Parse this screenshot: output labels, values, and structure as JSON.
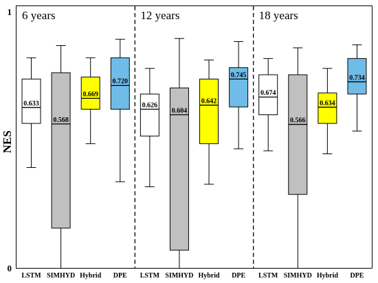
{
  "chart_data": {
    "type": "box",
    "ylabel": "NES",
    "ytick_labels": [
      "0",
      "1"
    ],
    "ylim": [
      0,
      1
    ],
    "panels": [
      {
        "title": "6 years",
        "boxes": [
          {
            "label": "LSTM",
            "color": "#ffffff",
            "min": 0.396,
            "q1": 0.57,
            "median": 0.633,
            "q3": 0.745,
            "max": 0.829,
            "median_label": "0.633"
          },
          {
            "label": "SIMHYD",
            "color": "#c0c0c0",
            "min": 0.0,
            "q1": 0.157,
            "median": 0.568,
            "q3": 0.77,
            "max": 0.877,
            "median_label": "0.568"
          },
          {
            "label": "Hybrid",
            "color": "#ffff00",
            "min": 0.49,
            "q1": 0.626,
            "median": 0.669,
            "q3": 0.753,
            "max": 0.829,
            "median_label": "0.669"
          },
          {
            "label": "DPE",
            "color": "#6fbce8",
            "min": 0.34,
            "q1": 0.626,
            "median": 0.72,
            "q3": 0.829,
            "max": 0.902,
            "median_label": "0.720"
          }
        ]
      },
      {
        "title": "12 years",
        "boxes": [
          {
            "label": "LSTM",
            "color": "#ffffff",
            "min": 0.32,
            "q1": 0.52,
            "median": 0.626,
            "q3": 0.686,
            "max": 0.787,
            "median_label": "0.626"
          },
          {
            "label": "SIMHYD",
            "color": "#c0c0c0",
            "min": 0.0,
            "q1": 0.07,
            "median": 0.604,
            "q3": 0.71,
            "max": 0.905,
            "median_label": "0.604"
          },
          {
            "label": "Hybrid",
            "color": "#ffff00",
            "min": 0.33,
            "q1": 0.49,
            "median": 0.642,
            "q3": 0.745,
            "max": 0.82,
            "median_label": "0.642"
          },
          {
            "label": "DPE",
            "color": "#6fbce8",
            "min": 0.47,
            "q1": 0.635,
            "median": 0.745,
            "q3": 0.79,
            "max": 0.893,
            "median_label": "0.745"
          }
        ]
      },
      {
        "title": "18 years",
        "boxes": [
          {
            "label": "LSTM",
            "color": "#ffffff",
            "min": 0.462,
            "q1": 0.604,
            "median": 0.674,
            "q3": 0.762,
            "max": 0.826,
            "median_label": "0.674"
          },
          {
            "label": "SIMHYD",
            "color": "#c0c0c0",
            "min": 0.0,
            "q1": 0.29,
            "median": 0.566,
            "q3": 0.762,
            "max": 0.868,
            "median_label": "0.566"
          },
          {
            "label": "Hybrid",
            "color": "#ffff00",
            "min": 0.45,
            "q1": 0.57,
            "median": 0.634,
            "q3": 0.69,
            "max": 0.787,
            "median_label": "0.634"
          },
          {
            "label": "DPE",
            "color": "#6fbce8",
            "min": 0.54,
            "q1": 0.686,
            "median": 0.734,
            "q3": 0.826,
            "max": 0.88,
            "median_label": "0.734"
          }
        ]
      }
    ]
  }
}
